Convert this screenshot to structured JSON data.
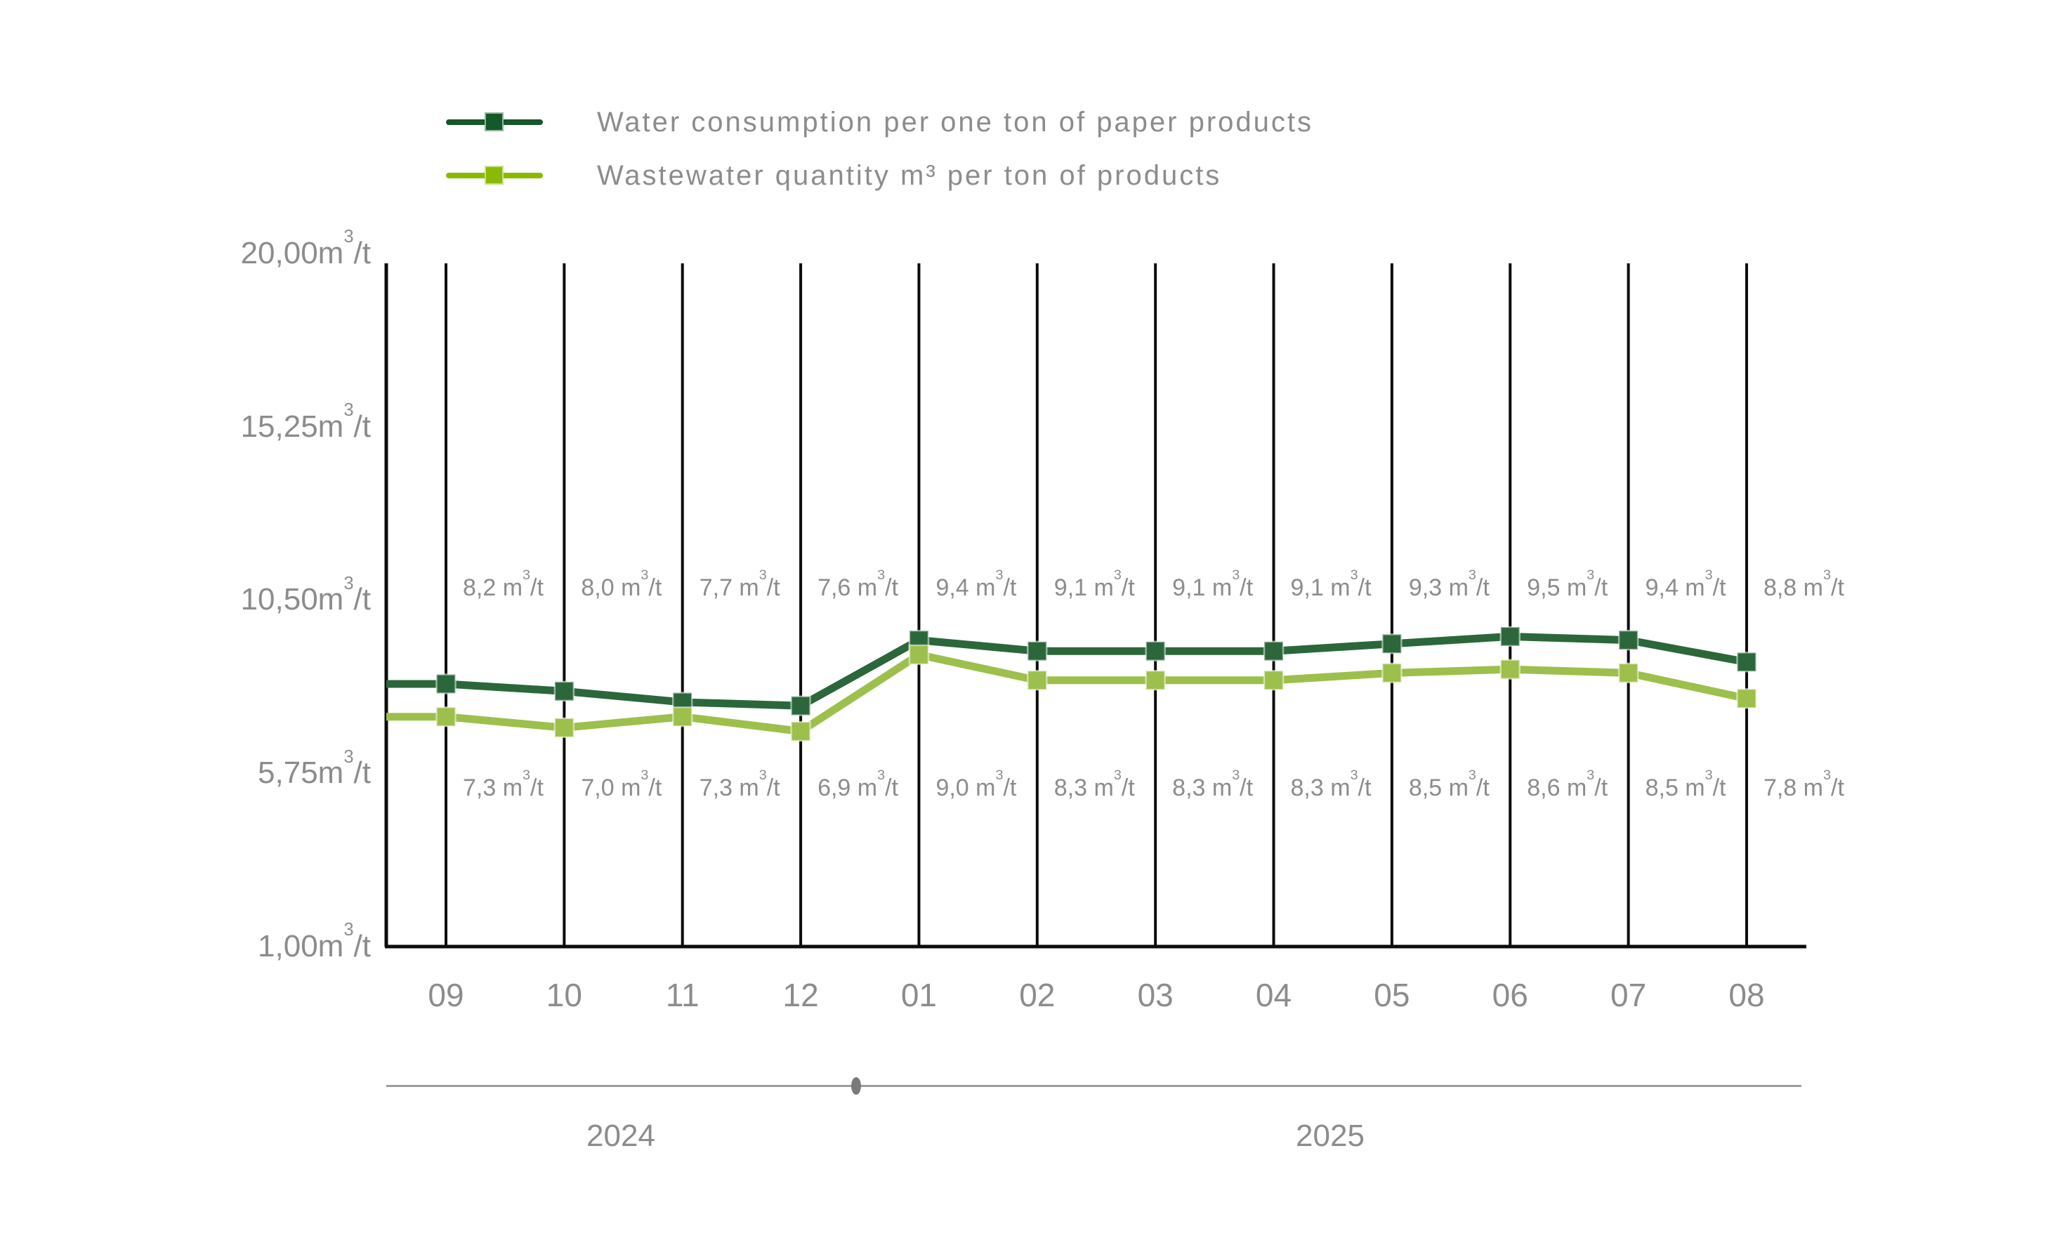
{
  "legend": {
    "items": [
      {
        "label": "Water consumption per one ton of paper products",
        "color": "#155829"
      },
      {
        "label": "Wastewater quantity m³ per ton of products",
        "color": "#8aba00"
      }
    ]
  },
  "chart_data": {
    "type": "line",
    "title": "",
    "unit": "m³/t",
    "categories": [
      "09",
      "10",
      "11",
      "12",
      "01",
      "02",
      "03",
      "04",
      "05",
      "06",
      "07",
      "08"
    ],
    "series": [
      {
        "name": "Water consumption per one ton of paper products",
        "color": "#2b673a",
        "marker": "square",
        "values": [
          8.2,
          8.0,
          7.7,
          7.6,
          9.4,
          9.1,
          9.1,
          9.1,
          9.3,
          9.5,
          9.4,
          8.8
        ],
        "value_labels": [
          "8,2",
          "8,0",
          "7,7",
          "7,6",
          "9,4",
          "9,1",
          "9,1",
          "9,1",
          "9,3",
          "9,5",
          "9,4",
          "8,8"
        ]
      },
      {
        "name": "Wastewater quantity m³ per ton of products",
        "color": "#9cc04b",
        "marker": "square",
        "values": [
          7.3,
          7.0,
          7.3,
          6.9,
          9.0,
          8.3,
          8.3,
          8.3,
          8.5,
          8.6,
          8.5,
          7.8
        ],
        "value_labels": [
          "7,3",
          "7,0",
          "7,3",
          "6,9",
          "9,0",
          "8,3",
          "8,3",
          "8,3",
          "8,5",
          "8,6",
          "8,5",
          "7,8"
        ]
      }
    ],
    "y_ticks": [
      {
        "value": 20.0,
        "label": "20,00"
      },
      {
        "value": 15.25,
        "label": "15,25"
      },
      {
        "value": 10.5,
        "label": "10,50"
      },
      {
        "value": 5.75,
        "label": "5,75"
      },
      {
        "value": 1.0,
        "label": "1,00"
      }
    ],
    "ylim": [
      1.0,
      20.0
    ],
    "grid": "vertical-only",
    "legend_position": "top-left",
    "unit_parts": {
      "value_prefix": " m",
      "tick_prefix": "m",
      "sup": "3",
      "suffix": "/t"
    }
  },
  "timeline": {
    "years": [
      {
        "label": "2024"
      },
      {
        "label": "2025"
      }
    ]
  },
  "colors": {
    "axis": "#0c0c0c",
    "text": "#8c8c8c",
    "timeline_line": "#9c9c9c",
    "timeline_dot": "#7a7a7a"
  }
}
